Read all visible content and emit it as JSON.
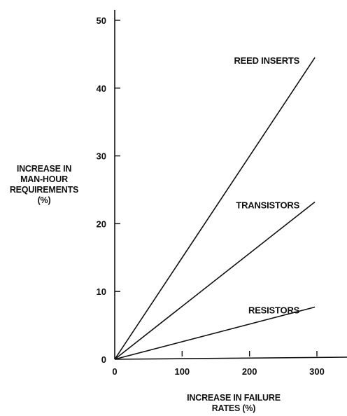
{
  "chart_data": {
    "type": "line",
    "xlabel": [
      "INCREASE IN FAILURE",
      "RATES (%)"
    ],
    "ylabel": [
      "INCREASE IN",
      "MAN-HOUR",
      "REQUIREMENTS",
      "(%)"
    ],
    "xlim": [
      0,
      330
    ],
    "ylim": [
      0,
      50
    ],
    "x_ticks": [
      0,
      100,
      200,
      300
    ],
    "y_ticks": [
      0,
      10,
      20,
      30,
      40,
      50
    ],
    "grid": false,
    "legend": "none",
    "series": [
      {
        "name": "REED INSERTS",
        "x": [
          0,
          297
        ],
        "y": [
          0,
          44.5
        ]
      },
      {
        "name": "TRANSISTORS",
        "x": [
          0,
          297
        ],
        "y": [
          0,
          23.2
        ]
      },
      {
        "name": "RESISTORS",
        "x": [
          0,
          297
        ],
        "y": [
          0,
          7.7
        ]
      }
    ],
    "colors": {
      "line": "#111111",
      "background": "#ffffff"
    }
  }
}
